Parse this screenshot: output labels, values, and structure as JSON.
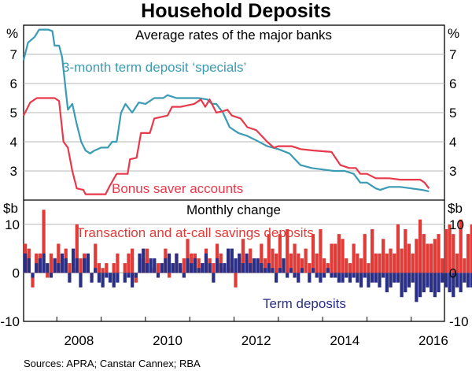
{
  "figure": {
    "title": "Household Deposits",
    "source": "Sources:  APRA; Canstar Cannex; RBA",
    "colors": {
      "teal": "#3a9bb5",
      "red": "#e8394b",
      "navy": "#2a2f86",
      "darkred": "#e23a36"
    }
  },
  "chart_data": [
    {
      "type": "line",
      "title": "Average rates of the major banks",
      "ylabel": "%",
      "ylim": [
        2,
        8
      ],
      "yticks": [
        3,
        4,
        5,
        6,
        7
      ],
      "xlim": [
        2007.25,
        2016.75
      ],
      "xticks": [
        2008,
        2010,
        2012,
        2014,
        2016
      ],
      "grid": true,
      "series": [
        {
          "name": "3-month term deposit ‘specials’",
          "color": "#3a9bb5",
          "points": [
            [
              2007.25,
              6.8
            ],
            [
              2007.35,
              7.4
            ],
            [
              2007.5,
              7.6
            ],
            [
              2007.6,
              7.85
            ],
            [
              2007.8,
              7.85
            ],
            [
              2007.9,
              7.8
            ],
            [
              2007.95,
              7.3
            ],
            [
              2008.05,
              7.3
            ],
            [
              2008.12,
              6.9
            ],
            [
              2008.25,
              5.1
            ],
            [
              2008.35,
              5.3
            ],
            [
              2008.45,
              4.6
            ],
            [
              2008.55,
              4.0
            ],
            [
              2008.65,
              3.7
            ],
            [
              2008.75,
              3.6
            ],
            [
              2008.85,
              3.7
            ],
            [
              2009.0,
              3.8
            ],
            [
              2009.15,
              3.8
            ],
            [
              2009.25,
              4.0
            ],
            [
              2009.35,
              4.0
            ],
            [
              2009.45,
              5.0
            ],
            [
              2009.55,
              5.3
            ],
            [
              2009.7,
              5.0
            ],
            [
              2009.85,
              5.35
            ],
            [
              2010.0,
              5.3
            ],
            [
              2010.2,
              5.5
            ],
            [
              2010.4,
              5.5
            ],
            [
              2010.5,
              5.6
            ],
            [
              2010.7,
              5.5
            ],
            [
              2011.0,
              5.5
            ],
            [
              2011.2,
              5.5
            ],
            [
              2011.4,
              5.45
            ],
            [
              2011.5,
              5.3
            ],
            [
              2011.6,
              5.3
            ],
            [
              2011.75,
              5.0
            ],
            [
              2011.9,
              4.5
            ],
            [
              2012.1,
              4.3
            ],
            [
              2012.3,
              4.2
            ],
            [
              2012.5,
              4.05
            ],
            [
              2012.75,
              3.85
            ],
            [
              2013.0,
              3.75
            ],
            [
              2013.25,
              3.6
            ],
            [
              2013.5,
              3.2
            ],
            [
              2013.75,
              3.1
            ],
            [
              2014.0,
              3.05
            ],
            [
              2014.25,
              3.0
            ],
            [
              2014.5,
              3.0
            ],
            [
              2014.7,
              2.9
            ],
            [
              2014.85,
              2.6
            ],
            [
              2015.0,
              2.6
            ],
            [
              2015.2,
              2.4
            ],
            [
              2015.3,
              2.35
            ],
            [
              2015.5,
              2.45
            ],
            [
              2015.75,
              2.45
            ],
            [
              2016.0,
              2.4
            ],
            [
              2016.25,
              2.35
            ],
            [
              2016.4,
              2.3
            ]
          ]
        },
        {
          "name": "Bonus saver accounts",
          "color": "#e8394b",
          "points": [
            [
              2007.25,
              4.9
            ],
            [
              2007.4,
              5.35
            ],
            [
              2007.55,
              5.5
            ],
            [
              2007.8,
              5.5
            ],
            [
              2007.95,
              5.5
            ],
            [
              2008.05,
              5.4
            ],
            [
              2008.15,
              4.0
            ],
            [
              2008.25,
              3.8
            ],
            [
              2008.35,
              3.0
            ],
            [
              2008.45,
              2.4
            ],
            [
              2008.6,
              2.35
            ],
            [
              2008.65,
              2.2
            ],
            [
              2008.9,
              2.2
            ],
            [
              2009.1,
              2.2
            ],
            [
              2009.2,
              2.5
            ],
            [
              2009.35,
              2.9
            ],
            [
              2009.6,
              2.9
            ],
            [
              2009.65,
              3.4
            ],
            [
              2009.8,
              3.45
            ],
            [
              2009.9,
              4.3
            ],
            [
              2010.1,
              4.3
            ],
            [
              2010.2,
              4.8
            ],
            [
              2010.35,
              4.85
            ],
            [
              2010.5,
              4.9
            ],
            [
              2010.6,
              5.2
            ],
            [
              2010.8,
              5.2
            ],
            [
              2011.1,
              5.3
            ],
            [
              2011.25,
              5.45
            ],
            [
              2011.35,
              5.2
            ],
            [
              2011.45,
              5.45
            ],
            [
              2011.6,
              5.0
            ],
            [
              2011.75,
              5.05
            ],
            [
              2011.85,
              5.1
            ],
            [
              2011.95,
              4.9
            ],
            [
              2012.15,
              4.8
            ],
            [
              2012.3,
              4.5
            ],
            [
              2012.5,
              4.4
            ],
            [
              2012.75,
              4.0
            ],
            [
              2012.9,
              3.8
            ],
            [
              2013.0,
              3.85
            ],
            [
              2013.3,
              3.85
            ],
            [
              2013.5,
              3.75
            ],
            [
              2013.8,
              3.7
            ],
            [
              2014.2,
              3.65
            ],
            [
              2014.4,
              3.2
            ],
            [
              2014.6,
              3.1
            ],
            [
              2014.75,
              3.1
            ],
            [
              2014.85,
              2.9
            ],
            [
              2015.0,
              2.9
            ],
            [
              2015.2,
              2.75
            ],
            [
              2015.5,
              2.75
            ],
            [
              2015.75,
              2.7
            ],
            [
              2015.85,
              2.7
            ],
            [
              2016.2,
              2.7
            ],
            [
              2016.3,
              2.6
            ],
            [
              2016.4,
              2.4
            ]
          ]
        }
      ]
    },
    {
      "type": "bar",
      "title": "Monthly change",
      "ylabel": "$b",
      "ylim": [
        -10,
        15
      ],
      "yticks": [
        -10,
        0,
        10
      ],
      "xlim": [
        2007.25,
        2016.75
      ],
      "xticks": [
        2008,
        2010,
        2012,
        2014,
        2016
      ],
      "grid": true,
      "start": 2007.25,
      "step": 0.0833,
      "series": [
        {
          "name": "Transaction and at-call savings deposits",
          "color": "#e23a36",
          "values": [
            6,
            5,
            -3,
            4,
            4,
            13,
            -1,
            4,
            3,
            6,
            3,
            5,
            2,
            1,
            10,
            3,
            4,
            3,
            -1,
            6,
            2,
            1,
            2,
            0,
            2,
            4,
            0,
            2,
            4,
            5,
            -2,
            3,
            3,
            5,
            1,
            1,
            2,
            2,
            5,
            -1,
            2,
            4,
            1,
            3,
            7,
            4,
            4,
            3,
            2,
            5,
            3,
            2,
            6,
            4,
            1,
            3,
            1,
            -3,
            3,
            7,
            3,
            5,
            2,
            3,
            6,
            3,
            8,
            5,
            4,
            8,
            3,
            9,
            4,
            6,
            4,
            3,
            5,
            2,
            8,
            4,
            9,
            3,
            2,
            6,
            6,
            8,
            7,
            3,
            2,
            6,
            4,
            3,
            8,
            2,
            9,
            4,
            4,
            7,
            4,
            5,
            4,
            10,
            5,
            9,
            6,
            4,
            7,
            11,
            8,
            6,
            6,
            7,
            8,
            3,
            9,
            10,
            8,
            4,
            11,
            3,
            8,
            10,
            5,
            7,
            10,
            5,
            7,
            6,
            5,
            10,
            8,
            11,
            3,
            8,
            6,
            4,
            6,
            3,
            8,
            11,
            3,
            -3,
            7,
            5,
            6,
            10
          ],
          "bar_labels": []
        },
        {
          "name": "Term deposits",
          "color": "#2a2f86",
          "values": [
            4,
            3,
            -1,
            2,
            3,
            4,
            2,
            -1,
            3,
            2,
            4,
            3,
            -2,
            5,
            3,
            -3,
            3,
            4,
            -2,
            1,
            -2,
            -3,
            -1,
            -2,
            -3,
            -2,
            0,
            -2,
            -1,
            -3,
            -1,
            4,
            5,
            2,
            3,
            3,
            -1,
            2,
            3,
            4,
            2,
            4,
            2,
            -1,
            3,
            2,
            3,
            1,
            2,
            4,
            2,
            -2,
            3,
            2,
            2,
            5,
            5,
            3,
            4,
            2,
            4,
            2,
            3,
            3,
            2,
            1,
            2,
            1,
            -2,
            1,
            3,
            -1,
            1,
            -1,
            -2,
            1,
            0,
            -2,
            1,
            -1,
            -2,
            -1,
            1,
            -1,
            -1,
            -2,
            -2,
            -1,
            -2,
            -1,
            -2,
            -3,
            -1,
            -3,
            -2,
            -2,
            -3,
            -1,
            -4,
            -3,
            -2,
            -2,
            -5,
            -4,
            -3,
            -2,
            -6,
            -5,
            -4,
            -3,
            -4,
            -5,
            -4,
            -2,
            -3,
            -4,
            -5,
            -3,
            -4,
            -2,
            -3,
            -3,
            -2,
            -4,
            -2,
            -1,
            -3,
            -2,
            -3,
            -1,
            -2,
            -4,
            -1,
            0,
            -2,
            -1,
            -1,
            -2,
            -1,
            2,
            3,
            1,
            2,
            3,
            4,
            3,
            3
          ]
        }
      ]
    }
  ]
}
